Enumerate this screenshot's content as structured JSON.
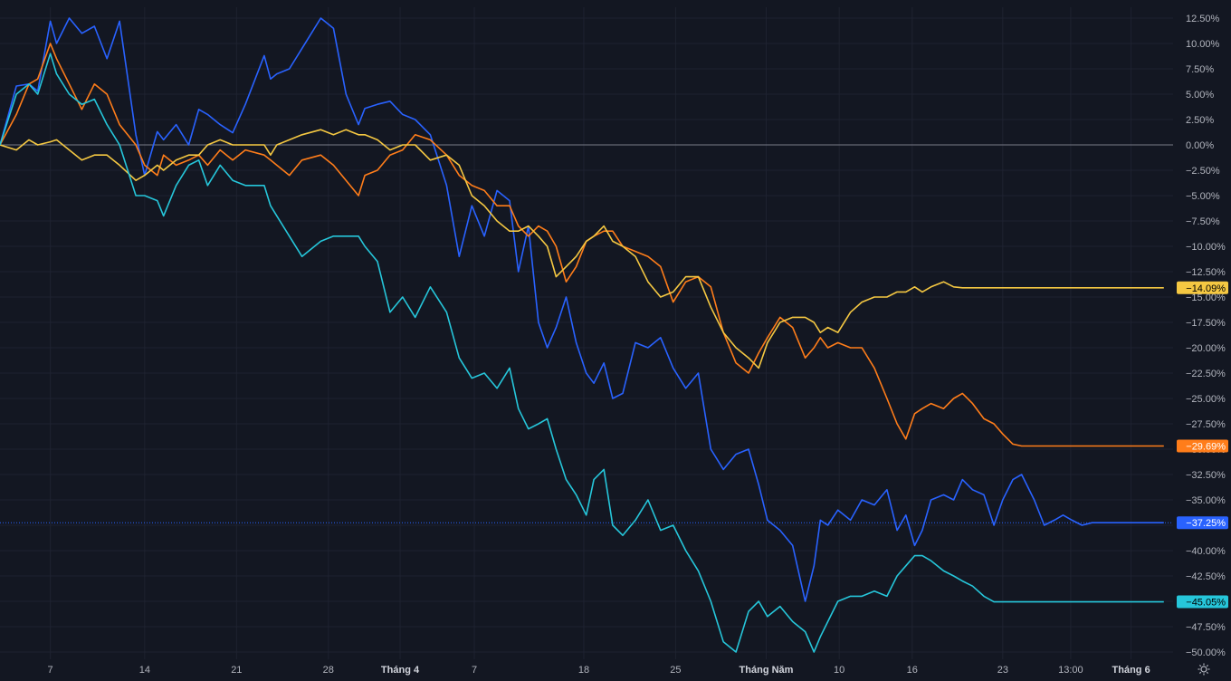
{
  "chart_data": {
    "type": "line",
    "title": "",
    "xlabel": "",
    "ylabel": "",
    "ylim": [
      -50.5,
      13.3
    ],
    "y_tick_values": [
      12.5,
      10,
      7.5,
      5,
      2.5,
      0,
      -2.5,
      -5,
      -7.5,
      -10,
      -12.5,
      -15,
      -17.5,
      -20,
      -22.5,
      -25,
      -27.5,
      -30,
      -32.5,
      -35,
      -37.5,
      -40,
      -42.5,
      -45,
      -47.5,
      -50
    ],
    "y_tick_labels": [
      "12.50%",
      "10.00%",
      "7.50%",
      "5.00%",
      "2.50%",
      "0.00%",
      "−2.50%",
      "−5.00%",
      "−7.50%",
      "−10.00%",
      "−12.50%",
      "−15.00%",
      "−17.50%",
      "−20.00%",
      "−22.50%",
      "−25.00%",
      "−27.50%",
      "−30.00%",
      "−32.50%",
      "−35.00%",
      "−37.50%",
      "−40.00%",
      "−42.50%",
      "−45.00%",
      "−47.50%",
      "−50.00%"
    ],
    "x_ticks": [
      {
        "label": "7",
        "pos": 0.04,
        "bold": false
      },
      {
        "label": "14",
        "pos": 0.115,
        "bold": false
      },
      {
        "label": "21",
        "pos": 0.188,
        "bold": false
      },
      {
        "label": "28",
        "pos": 0.261,
        "bold": false
      },
      {
        "label": "Tháng 4",
        "pos": 0.318,
        "bold": true
      },
      {
        "label": "7",
        "pos": 0.377,
        "bold": false
      },
      {
        "label": "18",
        "pos": 0.464,
        "bold": false
      },
      {
        "label": "25",
        "pos": 0.537,
        "bold": false
      },
      {
        "label": "Tháng Năm",
        "pos": 0.609,
        "bold": true
      },
      {
        "label": "10",
        "pos": 0.667,
        "bold": false
      },
      {
        "label": "16",
        "pos": 0.725,
        "bold": false
      },
      {
        "label": "23",
        "pos": 0.797,
        "bold": false
      },
      {
        "label": "13:00",
        "pos": 0.851,
        "bold": false
      },
      {
        "label": "Tháng 6",
        "pos": 0.899,
        "bold": true
      }
    ],
    "grid": true,
    "legend": "none",
    "zero_line": true,
    "x_range": [
      0,
      1
    ],
    "series": [
      {
        "color": "#2962ff",
        "last_label": "−37.25%",
        "x": [
          0.0,
          0.013,
          0.023,
          0.03,
          0.04,
          0.045,
          0.055,
          0.065,
          0.075,
          0.085,
          0.095,
          0.108,
          0.115,
          0.125,
          0.13,
          0.14,
          0.15,
          0.158,
          0.165,
          0.175,
          0.185,
          0.195,
          0.21,
          0.215,
          0.22,
          0.23,
          0.24,
          0.255,
          0.265,
          0.275,
          0.285,
          0.29,
          0.3,
          0.31,
          0.32,
          0.33,
          0.342,
          0.355,
          0.365,
          0.375,
          0.385,
          0.395,
          0.405,
          0.412,
          0.42,
          0.428,
          0.435,
          0.442,
          0.45,
          0.458,
          0.466,
          0.472,
          0.48,
          0.487,
          0.495,
          0.505,
          0.515,
          0.525,
          0.535,
          0.545,
          0.555,
          0.565,
          0.575,
          0.585,
          0.595,
          0.603,
          0.61,
          0.62,
          0.63,
          0.64,
          0.647,
          0.652,
          0.658,
          0.666,
          0.676,
          0.685,
          0.695,
          0.705,
          0.713,
          0.72,
          0.727,
          0.733,
          0.74,
          0.75,
          0.758,
          0.765,
          0.773,
          0.782,
          0.79,
          0.797,
          0.805,
          0.812,
          0.822,
          0.83,
          0.838,
          0.845,
          0.852,
          0.86,
          0.868,
          0.875,
          0.882,
          0.89,
          0.897,
          0.905,
          0.912,
          0.918,
          0.925
        ],
        "y": [
          0.0,
          5.8,
          6.0,
          5.3,
          12.2,
          10.0,
          12.5,
          11.0,
          11.7,
          8.5,
          12.2,
          1.0,
          -3.0,
          1.3,
          0.5,
          2.0,
          0.0,
          3.5,
          3.0,
          2.0,
          1.2,
          4.0,
          8.8,
          6.5,
          7.0,
          7.5,
          9.5,
          12.5,
          11.5,
          5.0,
          2.0,
          3.6,
          4.0,
          4.3,
          3.0,
          2.5,
          1.0,
          -4.0,
          -11.0,
          -6.0,
          -9.0,
          -4.5,
          -5.5,
          -12.5,
          -8.0,
          -17.5,
          -20.0,
          -18.0,
          -15.0,
          -19.5,
          -22.5,
          -23.5,
          -21.5,
          -25.0,
          -24.5,
          -19.5,
          -20.0,
          -19.0,
          -22.0,
          -24.0,
          -22.5,
          -30.0,
          -32.0,
          -30.5,
          -30.0,
          -33.5,
          -37.0,
          -38.0,
          -39.5,
          -45.0,
          -41.5,
          -37.0,
          -37.5,
          -36.0,
          -37.0,
          -35.0,
          -35.5,
          -34.0,
          -38.0,
          -36.5,
          -39.5,
          -38.0,
          -35.0,
          -34.5,
          -35.0,
          -33.0,
          -34.0,
          -34.5,
          -37.5,
          -35.0,
          -33.0,
          -32.5,
          -35.0,
          -37.5,
          -37.0,
          -36.5,
          -37.0,
          -37.5,
          -37.25,
          -37.25,
          -37.25,
          -37.25,
          -37.25,
          -37.25,
          -37.25,
          -37.25,
          -37.25
        ]
      },
      {
        "color": "#ff7d1a",
        "last_label": "−29.69%",
        "x": [
          0.0,
          0.013,
          0.023,
          0.03,
          0.04,
          0.045,
          0.055,
          0.065,
          0.075,
          0.085,
          0.095,
          0.108,
          0.115,
          0.125,
          0.13,
          0.14,
          0.15,
          0.158,
          0.165,
          0.175,
          0.185,
          0.195,
          0.21,
          0.215,
          0.22,
          0.23,
          0.24,
          0.255,
          0.265,
          0.275,
          0.285,
          0.29,
          0.3,
          0.31,
          0.32,
          0.33,
          0.342,
          0.355,
          0.365,
          0.375,
          0.385,
          0.395,
          0.405,
          0.412,
          0.42,
          0.428,
          0.435,
          0.442,
          0.45,
          0.458,
          0.466,
          0.472,
          0.48,
          0.487,
          0.495,
          0.505,
          0.515,
          0.525,
          0.535,
          0.545,
          0.555,
          0.565,
          0.575,
          0.585,
          0.595,
          0.603,
          0.61,
          0.62,
          0.63,
          0.64,
          0.647,
          0.652,
          0.658,
          0.666,
          0.676,
          0.685,
          0.695,
          0.705,
          0.713,
          0.72,
          0.727,
          0.733,
          0.74,
          0.75,
          0.758,
          0.765,
          0.773,
          0.782,
          0.79,
          0.797,
          0.805,
          0.812,
          0.822,
          0.83,
          0.838,
          0.845,
          0.852,
          0.86,
          0.868,
          0.875,
          0.882,
          0.89,
          0.897,
          0.905,
          0.912,
          0.918,
          0.925
        ],
        "y": [
          0.0,
          3.0,
          6.0,
          6.5,
          10.0,
          8.5,
          6.0,
          3.5,
          6.0,
          5.0,
          2.0,
          0.0,
          -2.0,
          -3.0,
          -1.0,
          -2.0,
          -1.5,
          -1.0,
          -2.0,
          -0.5,
          -1.5,
          -0.5,
          -1.0,
          -1.5,
          -2.0,
          -3.0,
          -1.5,
          -1.0,
          -2.0,
          -3.5,
          -5.0,
          -3.0,
          -2.5,
          -1.0,
          -0.5,
          1.0,
          0.5,
          -1.0,
          -3.0,
          -4.0,
          -4.5,
          -6.0,
          -6.0,
          -8.0,
          -9.0,
          -8.0,
          -8.5,
          -10.0,
          -13.5,
          -12.0,
          -9.5,
          -9.0,
          -8.5,
          -8.5,
          -10.0,
          -10.5,
          -11.0,
          -12.0,
          -15.5,
          -13.5,
          -13.0,
          -14.0,
          -18.5,
          -21.5,
          -22.5,
          -20.5,
          -19.0,
          -17.0,
          -18.0,
          -21.0,
          -20.0,
          -19.0,
          -20.0,
          -19.5,
          -20.0,
          -20.0,
          -22.0,
          -25.0,
          -27.5,
          -29.0,
          -26.5,
          -26.0,
          -25.5,
          -26.0,
          -25.0,
          -24.5,
          -25.5,
          -27.0,
          -27.5,
          -28.5,
          -29.5,
          -29.69,
          -29.69,
          -29.69,
          -29.69,
          -29.69,
          -29.69,
          -29.69,
          -29.69,
          -29.69,
          -29.69,
          -29.69,
          -29.69,
          -29.69,
          -29.69,
          -29.69,
          -29.69
        ]
      },
      {
        "color": "#f5c842",
        "last_label": "−14.09%",
        "x": [
          0.0,
          0.013,
          0.023,
          0.03,
          0.04,
          0.045,
          0.055,
          0.065,
          0.075,
          0.085,
          0.095,
          0.108,
          0.115,
          0.125,
          0.13,
          0.14,
          0.15,
          0.158,
          0.165,
          0.175,
          0.185,
          0.195,
          0.21,
          0.215,
          0.22,
          0.23,
          0.24,
          0.255,
          0.265,
          0.275,
          0.285,
          0.29,
          0.3,
          0.31,
          0.32,
          0.33,
          0.342,
          0.355,
          0.365,
          0.375,
          0.385,
          0.395,
          0.405,
          0.412,
          0.42,
          0.428,
          0.435,
          0.442,
          0.45,
          0.458,
          0.466,
          0.472,
          0.48,
          0.487,
          0.495,
          0.505,
          0.515,
          0.525,
          0.535,
          0.545,
          0.555,
          0.565,
          0.575,
          0.585,
          0.595,
          0.603,
          0.61,
          0.62,
          0.63,
          0.64,
          0.647,
          0.652,
          0.658,
          0.666,
          0.676,
          0.685,
          0.695,
          0.705,
          0.713,
          0.72,
          0.727,
          0.733,
          0.74,
          0.75,
          0.758,
          0.765,
          0.773,
          0.782,
          0.79,
          0.797,
          0.805,
          0.812,
          0.822,
          0.83,
          0.838,
          0.845,
          0.852,
          0.86,
          0.868,
          0.875,
          0.882,
          0.89,
          0.897,
          0.905,
          0.912,
          0.918,
          0.925
        ],
        "y": [
          0.0,
          -0.5,
          0.5,
          0.0,
          0.3,
          0.5,
          -0.5,
          -1.5,
          -1.0,
          -1.0,
          -2.0,
          -3.5,
          -3.0,
          -2.0,
          -2.5,
          -1.5,
          -1.0,
          -1.0,
          0.0,
          0.5,
          0.0,
          0.0,
          0.0,
          -1.0,
          0.0,
          0.5,
          1.0,
          1.5,
          1.0,
          1.5,
          1.0,
          1.0,
          0.5,
          -0.5,
          0.0,
          0.0,
          -1.5,
          -1.0,
          -2.0,
          -5.0,
          -6.0,
          -7.5,
          -8.5,
          -8.5,
          -8.0,
          -9.0,
          -10.0,
          -13.0,
          -12.0,
          -11.0,
          -9.5,
          -9.0,
          -8.0,
          -9.5,
          -10.0,
          -11.0,
          -13.5,
          -15.0,
          -14.5,
          -13.0,
          -13.0,
          -16.0,
          -18.5,
          -20.0,
          -21.0,
          -22.0,
          -19.5,
          -17.5,
          -17.0,
          -17.0,
          -17.5,
          -18.5,
          -18.0,
          -18.5,
          -16.5,
          -15.5,
          -15.0,
          -15.0,
          -14.5,
          -14.5,
          -14.0,
          -14.5,
          -14.0,
          -13.5,
          -14.0,
          -14.09,
          -14.09,
          -14.09,
          -14.09,
          -14.09,
          -14.09,
          -14.09,
          -14.09,
          -14.09,
          -14.09,
          -14.09,
          -14.09,
          -14.09,
          -14.09,
          -14.09,
          -14.09,
          -14.09,
          -14.09,
          -14.09,
          -14.09,
          -14.09,
          -14.09
        ]
      },
      {
        "color": "#26c6da",
        "last_label": "−45.05%",
        "x": [
          0.0,
          0.013,
          0.023,
          0.03,
          0.04,
          0.045,
          0.055,
          0.065,
          0.075,
          0.085,
          0.095,
          0.108,
          0.115,
          0.125,
          0.13,
          0.14,
          0.15,
          0.158,
          0.165,
          0.175,
          0.185,
          0.195,
          0.21,
          0.215,
          0.22,
          0.23,
          0.24,
          0.255,
          0.265,
          0.275,
          0.285,
          0.29,
          0.3,
          0.31,
          0.32,
          0.33,
          0.342,
          0.355,
          0.365,
          0.375,
          0.385,
          0.395,
          0.405,
          0.412,
          0.42,
          0.428,
          0.435,
          0.442,
          0.45,
          0.458,
          0.466,
          0.472,
          0.48,
          0.487,
          0.495,
          0.505,
          0.515,
          0.525,
          0.535,
          0.545,
          0.555,
          0.565,
          0.575,
          0.585,
          0.595,
          0.603,
          0.61,
          0.62,
          0.63,
          0.64,
          0.647,
          0.652,
          0.658,
          0.666,
          0.676,
          0.685,
          0.695,
          0.705,
          0.713,
          0.72,
          0.727,
          0.733,
          0.74,
          0.75,
          0.758,
          0.765,
          0.773,
          0.782,
          0.79,
          0.797,
          0.805,
          0.812,
          0.822,
          0.83,
          0.838,
          0.845,
          0.852,
          0.86,
          0.868,
          0.875,
          0.882,
          0.89,
          0.897,
          0.905,
          0.912,
          0.918,
          0.925
        ],
        "y": [
          0.0,
          5.0,
          6.0,
          5.0,
          9.0,
          7.0,
          5.0,
          4.0,
          4.5,
          2.0,
          0.0,
          -5.0,
          -5.0,
          -5.5,
          -7.0,
          -4.0,
          -2.0,
          -1.5,
          -4.0,
          -2.0,
          -3.5,
          -4.0,
          -4.0,
          -6.0,
          -7.0,
          -9.0,
          -11.0,
          -9.5,
          -9.0,
          -9.0,
          -9.0,
          -10.0,
          -11.5,
          -16.5,
          -15.0,
          -17.0,
          -14.0,
          -16.5,
          -21.0,
          -23.0,
          -22.5,
          -24.0,
          -22.0,
          -26.0,
          -28.0,
          -27.5,
          -27.0,
          -30.0,
          -33.0,
          -34.5,
          -36.5,
          -33.0,
          -32.0,
          -37.5,
          -38.5,
          -37.0,
          -35.0,
          -38.0,
          -37.5,
          -40.0,
          -42.0,
          -45.0,
          -49.0,
          -50.0,
          -46.0,
          -45.0,
          -46.5,
          -45.5,
          -47.0,
          -48.0,
          -50.0,
          -48.5,
          -47.0,
          -45.0,
          -44.5,
          -44.5,
          -44.0,
          -44.5,
          -42.5,
          -41.5,
          -40.5,
          -40.5,
          -41.0,
          -42.0,
          -42.5,
          -43.0,
          -43.5,
          -44.5,
          -45.05,
          -45.05,
          -45.05,
          -45.05,
          -45.05,
          -45.05,
          -45.05,
          -45.05,
          -45.05,
          -45.05,
          -45.05,
          -45.05,
          -45.05,
          -45.05,
          -45.05,
          -45.05,
          -45.05,
          -45.05,
          -45.05
        ]
      }
    ]
  },
  "icons": {
    "settings": "gear-icon"
  }
}
